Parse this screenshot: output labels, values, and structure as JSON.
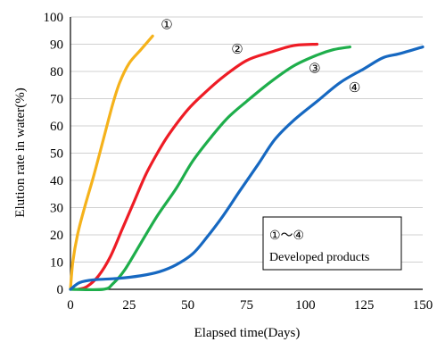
{
  "chart_data": {
    "type": "line",
    "xlabel": "Elapsed time(Days)",
    "ylabel": "Elution rate in water(%)",
    "xlim": [
      0,
      150
    ],
    "ylim": [
      0,
      100
    ],
    "xticks": [
      0,
      25,
      50,
      75,
      100,
      125,
      150
    ],
    "yticks": [
      0,
      10,
      20,
      30,
      40,
      50,
      60,
      70,
      80,
      90,
      100
    ],
    "grid": "horizontal",
    "annotation_box": {
      "line1": "①～④",
      "line2": "Developed products"
    },
    "series": [
      {
        "name": "①",
        "color": "#F5B21B",
        "points": [
          [
            0,
            0
          ],
          [
            1,
            10
          ],
          [
            3,
            20
          ],
          [
            6,
            30
          ],
          [
            10,
            42
          ],
          [
            14,
            55
          ],
          [
            18,
            68
          ],
          [
            21,
            76
          ],
          [
            25,
            83
          ],
          [
            30,
            88
          ],
          [
            35,
            93
          ]
        ]
      },
      {
        "name": "②",
        "color": "#EE1C25",
        "points": [
          [
            3,
            0
          ],
          [
            7,
            1
          ],
          [
            12,
            5
          ],
          [
            17,
            12
          ],
          [
            22,
            22
          ],
          [
            27,
            32
          ],
          [
            32,
            42
          ],
          [
            37,
            50
          ],
          [
            42,
            57
          ],
          [
            50,
            66
          ],
          [
            57,
            72
          ],
          [
            65,
            78
          ],
          [
            75,
            84
          ],
          [
            85,
            87
          ],
          [
            95,
            89.5
          ],
          [
            105,
            90
          ]
        ]
      },
      {
        "name": "③",
        "color": "#1EAE4B",
        "points": [
          [
            0,
            0
          ],
          [
            14,
            0
          ],
          [
            18,
            2
          ],
          [
            23,
            7
          ],
          [
            30,
            17
          ],
          [
            37,
            27
          ],
          [
            45,
            37
          ],
          [
            52,
            47
          ],
          [
            60,
            56
          ],
          [
            67,
            63
          ],
          [
            75,
            69
          ],
          [
            85,
            76
          ],
          [
            95,
            82
          ],
          [
            105,
            86
          ],
          [
            112,
            88
          ],
          [
            119,
            89
          ]
        ]
      },
      {
        "name": "④",
        "color": "#1668C1",
        "points": [
          [
            0,
            0
          ],
          [
            4,
            2.5
          ],
          [
            10,
            3.5
          ],
          [
            20,
            4
          ],
          [
            30,
            5
          ],
          [
            38,
            6.5
          ],
          [
            45,
            9
          ],
          [
            52,
            13
          ],
          [
            58,
            19
          ],
          [
            65,
            27
          ],
          [
            72,
            36
          ],
          [
            80,
            46
          ],
          [
            87,
            55
          ],
          [
            95,
            62
          ],
          [
            105,
            69
          ],
          [
            115,
            76
          ],
          [
            125,
            81
          ],
          [
            133,
            85
          ],
          [
            140,
            86.5
          ],
          [
            150,
            89
          ]
        ]
      }
    ],
    "series_labels": [
      {
        "text": "①",
        "x": 41,
        "y": 95.5
      },
      {
        "text": "②",
        "x": 71,
        "y": 86.5
      },
      {
        "text": "③",
        "x": 104,
        "y": 79.5
      },
      {
        "text": "④",
        "x": 121,
        "y": 72.5
      }
    ]
  }
}
